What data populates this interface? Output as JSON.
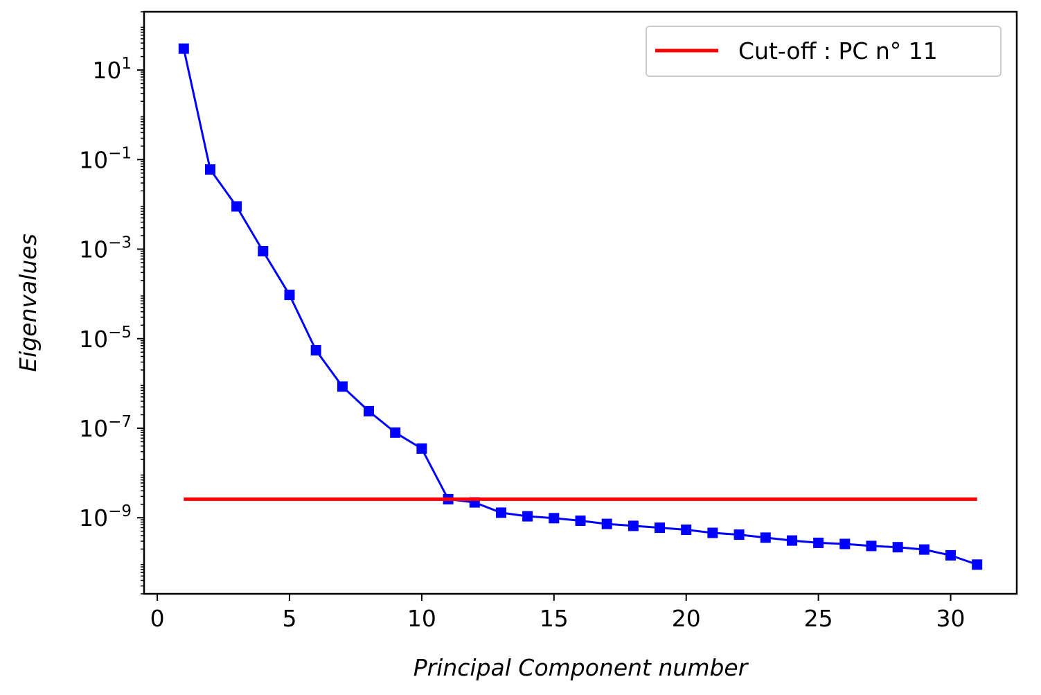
{
  "chart_data": {
    "type": "line",
    "title": "",
    "xlabel": "Principal Component number",
    "ylabel": "Eigenvalues",
    "yscale": "log",
    "xlim": [
      -0.5,
      32.5
    ],
    "ylim": [
      2e-11,
      200
    ],
    "x_ticks": [
      0,
      5,
      10,
      15,
      20,
      25,
      30
    ],
    "y_ticks": [
      {
        "value": 10,
        "base": "10",
        "exp": "1"
      },
      {
        "value": 0.1,
        "base": "10",
        "exp": "−1"
      },
      {
        "value": 0.001,
        "base": "10",
        "exp": "−3"
      },
      {
        "value": 1e-05,
        "base": "10",
        "exp": "−5"
      },
      {
        "value": 1e-07,
        "base": "10",
        "exp": "−7"
      },
      {
        "value": 1e-09,
        "base": "10",
        "exp": "−9"
      }
    ],
    "grid": false,
    "legend_position": "top-right",
    "series": [
      {
        "color": "#0000ff",
        "marker": "square",
        "x": [
          1,
          2,
          3,
          4,
          5,
          6,
          7,
          8,
          9,
          10,
          11,
          12,
          13,
          14,
          15,
          16,
          17,
          18,
          19,
          20,
          21,
          22,
          23,
          24,
          25,
          26,
          27,
          28,
          29,
          30,
          31
        ],
        "y": [
          30,
          0.06,
          0.009,
          0.0009,
          9.5e-05,
          5.5e-06,
          8.5e-07,
          2.4e-07,
          8e-08,
          3.5e-08,
          2.6e-09,
          2.2e-09,
          1.3e-09,
          1.08e-09,
          9.8e-10,
          8.6e-10,
          7.3e-10,
          6.6e-10,
          6e-10,
          5.4e-10,
          4.6e-10,
          4.2e-10,
          3.6e-10,
          3.1e-10,
          2.75e-10,
          2.6e-10,
          2.35e-10,
          2.2e-10,
          1.95e-10,
          1.45e-10,
          9e-11
        ]
      },
      {
        "name": "Cut-off : PC n° 11",
        "color": "#ff0000",
        "marker": "none",
        "x": [
          1,
          31
        ],
        "y": [
          2.6e-09,
          2.6e-09
        ]
      }
    ],
    "legend": [
      "Cut-off : PC n° 11"
    ]
  }
}
